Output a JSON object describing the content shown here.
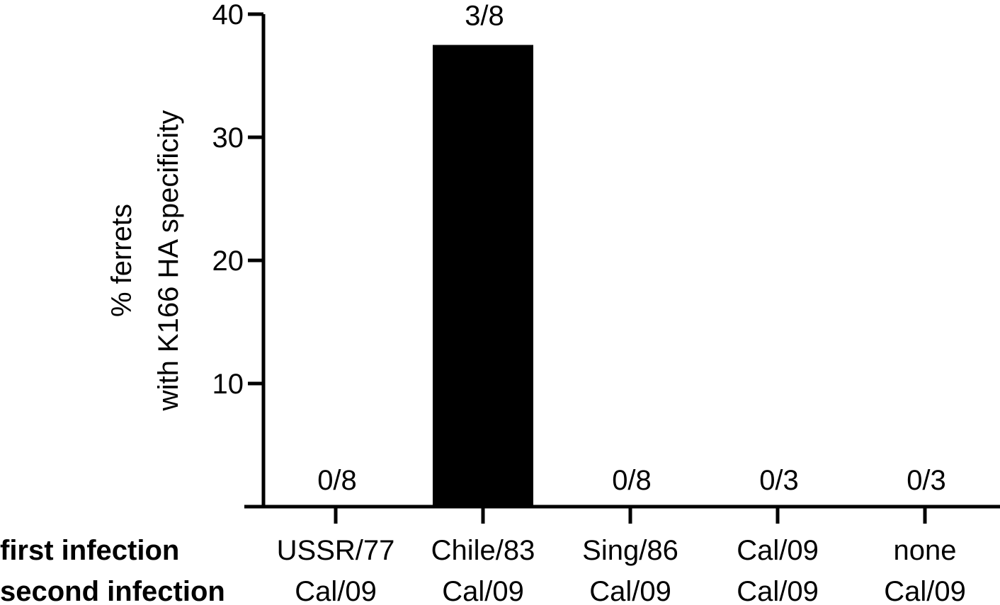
{
  "chart_data": {
    "type": "bar",
    "title": "",
    "ylabel_lines": [
      "% ferrets",
      "with K166 HA specificity"
    ],
    "xlabel": "",
    "ylim": [
      0,
      40
    ],
    "yticks": [
      10,
      20,
      30,
      40
    ],
    "row_labels": [
      "first infection",
      "second infection"
    ],
    "categories": [
      {
        "first": "USSR/77",
        "second": "Cal/09"
      },
      {
        "first": "Chile/83",
        "second": "Cal/09"
      },
      {
        "first": "Sing/86",
        "second": "Cal/09"
      },
      {
        "first": "Cal/09",
        "second": "Cal/09"
      },
      {
        "first": "none",
        "second": "Cal/09"
      }
    ],
    "values": [
      0,
      37.5,
      0,
      0,
      0
    ],
    "data_labels": [
      "0/8",
      "3/8",
      "0/8",
      "0/3",
      "0/3"
    ],
    "bar_color": "#000000",
    "grid": false,
    "legend": "none"
  }
}
